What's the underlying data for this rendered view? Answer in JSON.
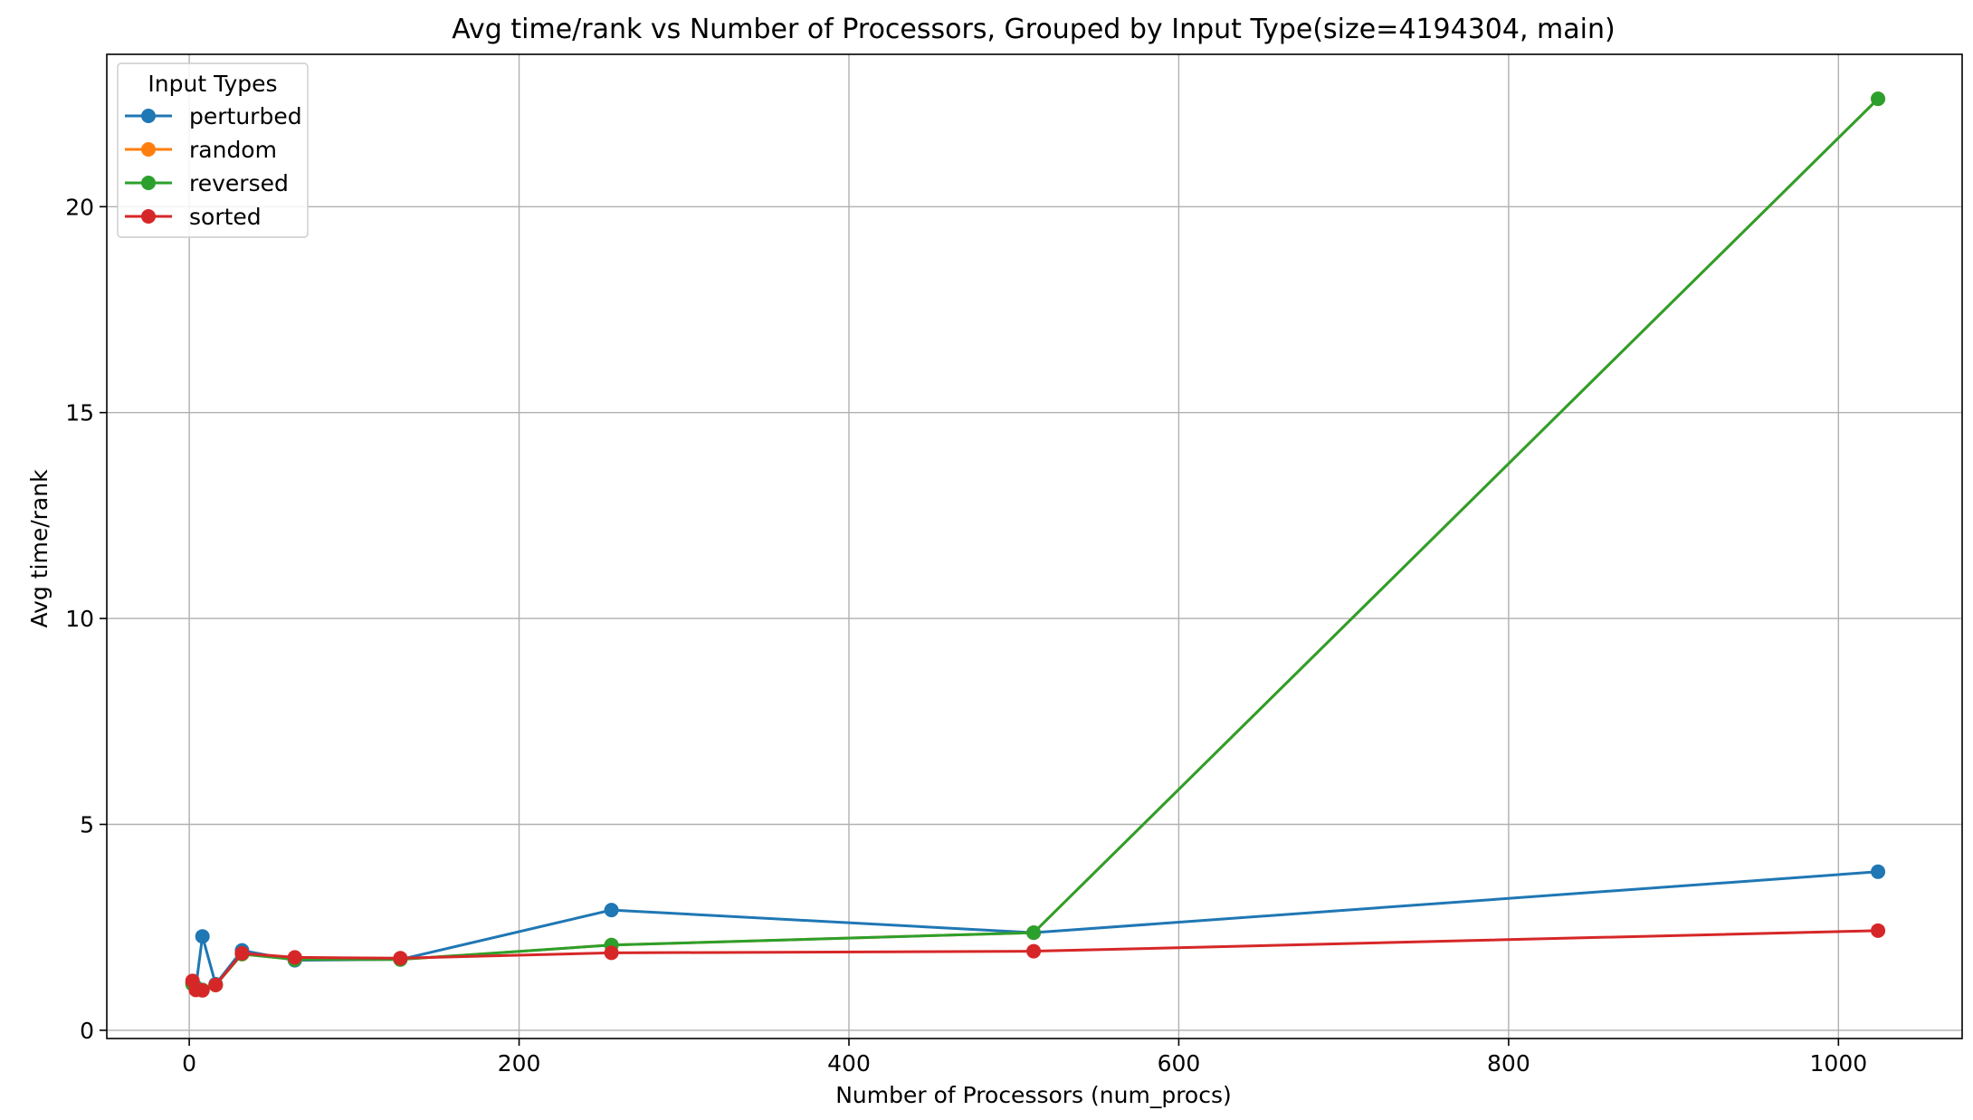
{
  "chart_data": {
    "type": "line",
    "title": "Avg time/rank vs Number of Processors, Grouped by Input Type(size=4194304, main)",
    "xlabel": "Number of Processors (num_procs)",
    "ylabel": "Avg time/rank",
    "xlim": [
      -50,
      1075
    ],
    "ylim": [
      -0.2,
      23.7
    ],
    "xticks": [
      0,
      200,
      400,
      600,
      800,
      1000
    ],
    "yticks": [
      0,
      5,
      10,
      15,
      20
    ],
    "grid": true,
    "legend": {
      "title": "Input Types",
      "placement": "top-left"
    },
    "x": [
      2,
      4,
      8,
      16,
      32,
      64,
      128,
      256,
      512,
      1024
    ],
    "series": [
      {
        "name": "perturbed",
        "color": "#1f77b4",
        "values": [
          1.15,
          1.05,
          2.28,
          1.12,
          1.94,
          1.7,
          1.72,
          2.92,
          2.37,
          3.85
        ]
      },
      {
        "name": "random",
        "color": "#ff7f0e",
        "values": [
          1.12,
          1.0,
          0.98,
          1.1,
          1.85,
          1.72,
          1.72,
          2.07,
          2.37,
          22.62
        ]
      },
      {
        "name": "reversed",
        "color": "#2ca02c",
        "values": [
          1.12,
          1.0,
          0.98,
          1.1,
          1.85,
          1.72,
          1.72,
          2.07,
          2.37,
          22.62
        ]
      },
      {
        "name": "sorted",
        "color": "#d62728",
        "values": [
          1.2,
          0.98,
          0.97,
          1.1,
          1.87,
          1.77,
          1.75,
          1.88,
          1.92,
          2.42
        ]
      }
    ]
  }
}
